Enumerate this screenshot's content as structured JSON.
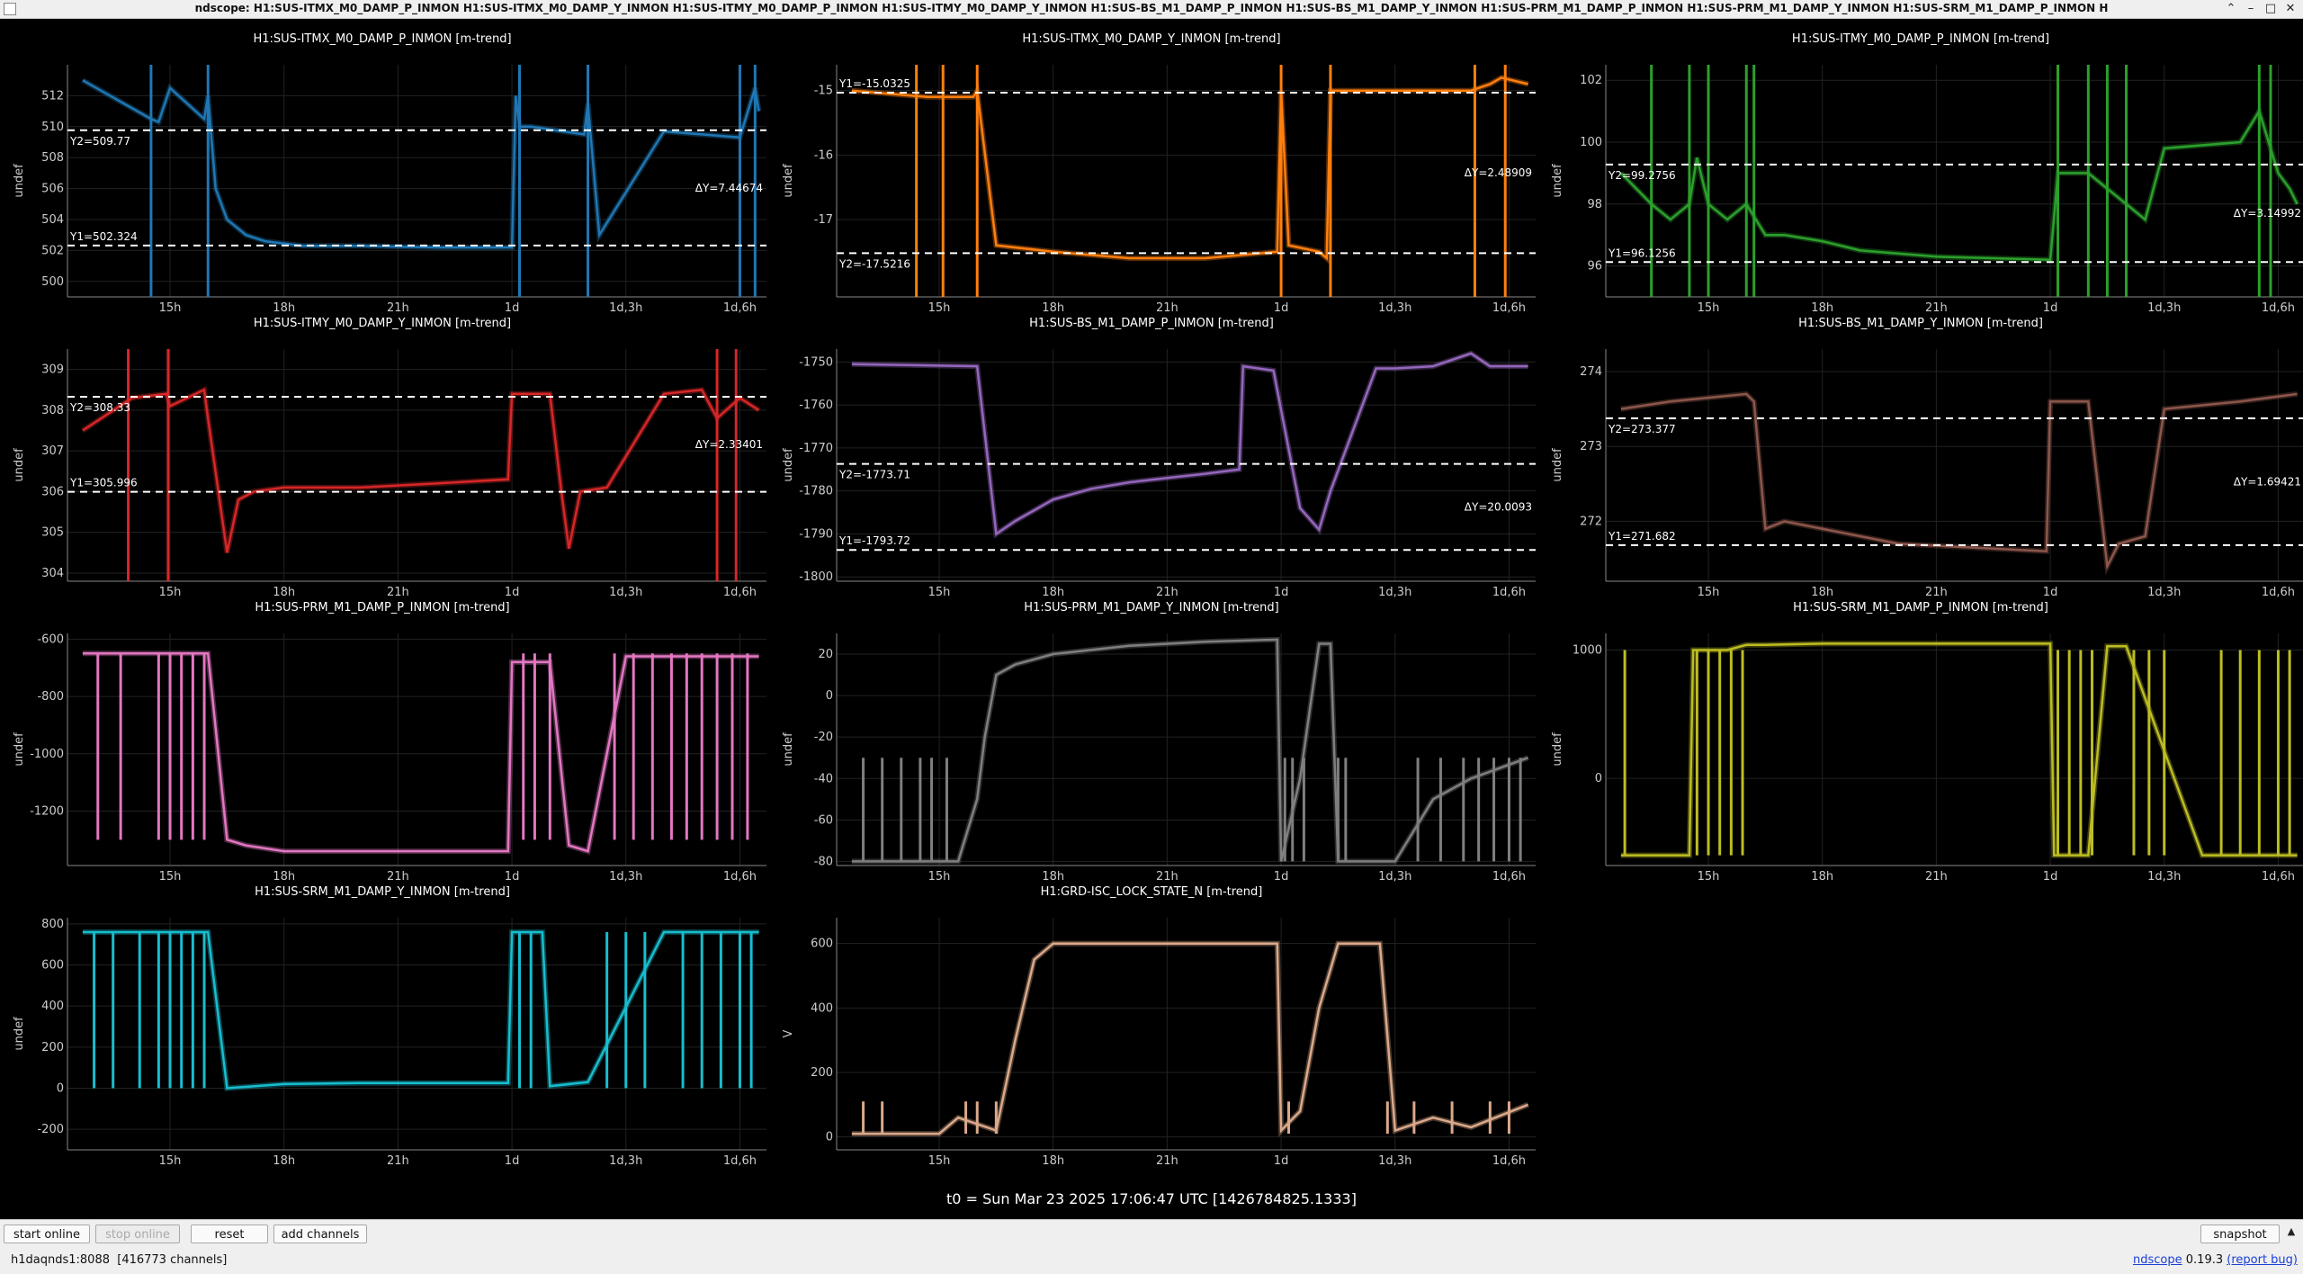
{
  "window": {
    "title": "ndscope: H1:SUS-ITMX_M0_DAMP_P_INMON H1:SUS-ITMX_M0_DAMP_Y_INMON H1:SUS-ITMY_M0_DAMP_P_INMON H1:SUS-ITMY_M0_DAMP_Y_INMON H1:SUS-BS_M1_DAMP_P_INMON H1:SUS-BS_M1_DAMP_Y_INMON H1:SUS-PRM_M1_DAMP_P_INMON H1:SUS-PRM_M1_DAMP_Y_INMON H1:SUS-SRM_M1_DAMP_P_INMON H",
    "minimize": "–",
    "maximize": "□",
    "close": "✕",
    "up": "⌃"
  },
  "t0_label": "t0 = Sun Mar 23 2025 17:06:47 UTC [1426784825.1333]",
  "x_ticks": [
    "15h",
    "18h",
    "21h",
    "1d",
    "1d,3h",
    "1d,6h"
  ],
  "buttons": {
    "start_online": "start online",
    "stop_online": "stop online",
    "reset": "reset",
    "add_channels": "add channels",
    "snapshot": "snapshot",
    "expand": "▲"
  },
  "status": {
    "server": "h1daqnds1:8088  [416773 channels]",
    "app": "ndscope",
    "version": "0.19.3",
    "report": "(report bug)"
  },
  "chart_data": [
    {
      "type": "line",
      "title": "H1:SUS-ITMX_M0_DAMP_P_INMON [m-trend]",
      "ylabel": "undef",
      "color": "#1f77b4",
      "ylim": [
        499,
        514
      ],
      "yticks": [
        "500",
        "502",
        "504",
        "506",
        "508",
        "510",
        "512"
      ],
      "yticks_values": [
        500,
        502,
        504,
        506,
        508,
        510,
        512
      ],
      "x": [
        -2.3,
        -0.5,
        -0.4,
        -0.3,
        0.0,
        0.9,
        1.0,
        1.2,
        1.5,
        2.0,
        2.5,
        3.5,
        5.0,
        7.0,
        9.0,
        9.1,
        9.2,
        9.5,
        10.9,
        11.0,
        11.3,
        13.0,
        14.0,
        15.0,
        15.4,
        15.5
      ],
      "values": [
        513,
        510.5,
        510.4,
        510.3,
        512.5,
        510.5,
        512,
        506,
        504,
        503,
        502.6,
        502.3,
        502.3,
        502.2,
        502.2,
        512,
        510,
        510,
        509.5,
        511.5,
        503,
        509.7,
        509.5,
        509.3,
        512.5,
        511
      ],
      "spikes_x": [
        -0.5,
        1.0,
        9.2,
        11.0,
        15.0,
        15.4
      ],
      "cursors": {
        "Y1": "Y1=502.324",
        "Y2": "Y2=509.77",
        "dY": "ΔY=7.44674",
        "y1": 502.324,
        "y2": 509.77
      }
    },
    {
      "type": "line",
      "title": "H1:SUS-ITMX_M0_DAMP_Y_INMON [m-trend]",
      "ylabel": "undef",
      "color": "#ff7f0e",
      "ylim": [
        -18.2,
        -14.6
      ],
      "yticks": [
        "-15",
        "-16",
        "-17"
      ],
      "yticks_values": [
        -15,
        -16,
        -17
      ],
      "x": [
        -2.3,
        -0.3,
        -0.1,
        0.9,
        1.0,
        1.5,
        3.0,
        5.0,
        7.0,
        8.9,
        9.0,
        9.2,
        10.0,
        10.2,
        10.3,
        12.0,
        13.0,
        14.0,
        14.5,
        14.8,
        15.5
      ],
      "values": [
        -15.0,
        -15.1,
        -15.1,
        -15.1,
        -15.0,
        -17.4,
        -17.5,
        -17.6,
        -17.6,
        -17.5,
        -15.0,
        -17.4,
        -17.5,
        -17.6,
        -15.0,
        -15.0,
        -15.0,
        -15.0,
        -14.9,
        -14.8,
        -14.9
      ],
      "spikes_x": [
        -0.6,
        0.1,
        1.0,
        9.0,
        10.3,
        14.1,
        14.9
      ],
      "cursors": {
        "Y1": "Y1=-15.0325",
        "Y2": "Y2=-17.5216",
        "dY": "ΔY=2.48909",
        "y1": -15.0325,
        "y2": -17.5216
      }
    },
    {
      "type": "line",
      "title": "H1:SUS-ITMY_M0_DAMP_P_INMON [m-trend]",
      "ylabel": "undef",
      "color": "#2ca02c",
      "ylim": [
        95,
        102.5
      ],
      "yticks": [
        "96",
        "98",
        "100",
        "102"
      ],
      "yticks_values": [
        96,
        98,
        100,
        102
      ],
      "x": [
        -2.3,
        -1.5,
        -1.0,
        -0.5,
        -0.3,
        0.0,
        0.5,
        1.0,
        1.5,
        2.0,
        3.0,
        4.0,
        6.0,
        9.0,
        9.2,
        10.0,
        10.5,
        11.0,
        11.5,
        12.0,
        14.0,
        14.5,
        15.0,
        15.3,
        15.5
      ],
      "values": [
        99,
        98,
        97.5,
        98,
        99.5,
        98,
        97.5,
        98,
        97,
        97,
        96.8,
        96.5,
        96.3,
        96.2,
        99,
        99,
        98.5,
        98,
        97.5,
        99.8,
        100,
        101,
        99,
        98.5,
        98
      ],
      "spikes_x": [
        -1.5,
        -0.5,
        0.0,
        1.0,
        1.2,
        9.2,
        10.0,
        10.5,
        11.0,
        14.5,
        14.8
      ],
      "cursors": {
        "Y1": "Y1=96.1256",
        "Y2": "Y2=99.2756",
        "dY": "ΔY=3.14992",
        "y1": 96.1256,
        "y2": 99.2756
      }
    },
    {
      "type": "line",
      "title": "H1:SUS-ITMY_M0_DAMP_Y_INMON [m-trend]",
      "ylabel": "undef",
      "color": "#d62728",
      "ylim": [
        303.8,
        309.5
      ],
      "yticks": [
        "304",
        "305",
        "306",
        "307",
        "308",
        "309"
      ],
      "yticks_values": [
        304,
        305,
        306,
        307,
        308,
        309
      ],
      "x": [
        -2.3,
        -1.0,
        -0.1,
        0.0,
        0.9,
        1.0,
        1.5,
        1.8,
        2.2,
        3.0,
        5.0,
        7.0,
        8.9,
        9.0,
        10.0,
        10.3,
        10.5,
        10.8,
        11.5,
        13.0,
        14.0,
        14.4,
        15.0,
        15.5
      ],
      "values": [
        307.5,
        308.3,
        308.4,
        308.1,
        308.5,
        307.8,
        304.5,
        305.8,
        306.0,
        306.1,
        306.1,
        306.2,
        306.3,
        308.4,
        308.4,
        306.0,
        304.6,
        306.0,
        306.1,
        308.4,
        308.5,
        307.8,
        308.3,
        308.0
      ],
      "spikes_x": [
        -1.1,
        -0.05,
        14.4,
        14.9
      ],
      "cursors": {
        "Y1": "Y1=305.996",
        "Y2": "Y2=308.33",
        "dY": "ΔY=2.33401",
        "y1": 305.996,
        "y2": 308.33
      }
    },
    {
      "type": "line",
      "title": "H1:SUS-BS_M1_DAMP_P_INMON [m-trend]",
      "ylabel": "undef",
      "color": "#9467bd",
      "ylim": [
        -1801,
        -1747
      ],
      "yticks": [
        "-1750",
        "-1760",
        "-1770",
        "-1780",
        "-1790",
        "-1800"
      ],
      "yticks_values": [
        -1750,
        -1760,
        -1770,
        -1780,
        -1790,
        -1800
      ],
      "x": [
        -2.3,
        1.0,
        1.5,
        2.0,
        3.0,
        4.0,
        5.0,
        6.0,
        7.0,
        7.9,
        8.0,
        8.8,
        9.5,
        10.0,
        10.3,
        11.5,
        12.0,
        13.0,
        14.0,
        14.5,
        15.5
      ],
      "values": [
        -1750.5,
        -1751,
        -1790,
        -1787,
        -1782,
        -1779.5,
        -1778,
        -1777,
        -1776,
        -1775,
        -1751,
        -1752,
        -1784,
        -1789,
        -1780,
        -1751.5,
        -1751.5,
        -1751,
        -1748,
        -1751,
        -1751
      ],
      "spikes_x": [],
      "cursors": {
        "Y1": "Y1=-1793.72",
        "Y2": "Y2=-1773.71",
        "dY": "ΔY=20.0093",
        "y1": -1793.72,
        "y2": -1773.71
      }
    },
    {
      "type": "line",
      "title": "H1:SUS-BS_M1_DAMP_Y_INMON [m-trend]",
      "ylabel": "undef",
      "color": "#8c564b",
      "ylim": [
        271.2,
        274.3
      ],
      "yticks": [
        "272",
        "273",
        "274"
      ],
      "yticks_values": [
        272,
        273,
        274
      ],
      "x": [
        -2.3,
        -1.0,
        1.0,
        1.2,
        1.5,
        2.0,
        5.0,
        8.9,
        9.0,
        10.0,
        10.5,
        10.8,
        11.5,
        12.0,
        14.0,
        15.5
      ],
      "values": [
        273.5,
        273.6,
        273.7,
        273.6,
        271.9,
        272.0,
        271.7,
        271.6,
        273.6,
        273.6,
        271.4,
        271.7,
        271.8,
        273.5,
        273.6,
        273.7
      ],
      "spikes_x": [],
      "cursors": {
        "Y1": "Y1=271.682",
        "Y2": "Y2=273.377",
        "dY": "ΔY=1.69421",
        "y1": 271.682,
        "y2": 273.377
      }
    },
    {
      "type": "line",
      "title": "H1:SUS-PRM_M1_DAMP_P_INMON [m-trend]",
      "ylabel": "undef",
      "color": "#e377c2",
      "ylim": [
        -1390,
        -580
      ],
      "yticks": [
        "-600",
        "-800",
        "-1000",
        "-1200"
      ],
      "yticks_values": [
        -600,
        -800,
        -1000,
        -1200
      ],
      "x": [
        -2.3,
        -0.5,
        1.0,
        1.5,
        2.0,
        3.0,
        5.0,
        7.0,
        8.9,
        9.0,
        10.0,
        10.5,
        11.0,
        12.0,
        13.0,
        14.0,
        15.5
      ],
      "values": [
        -650,
        -650,
        -650,
        -1300,
        -1320,
        -1340,
        -1340,
        -1340,
        -1340,
        -680,
        -680,
        -1320,
        -1340,
        -660,
        -660,
        -660,
        -660
      ],
      "spikes_x": [
        -1.9,
        -1.3,
        -0.3,
        0.0,
        0.3,
        0.6,
        0.9,
        9.3,
        9.6,
        10.0,
        11.7,
        12.2,
        12.7,
        13.2,
        13.6,
        14.0,
        14.4,
        14.8,
        15.2
      ],
      "spike_low": -1300,
      "spike_high": -650,
      "cursors": null
    },
    {
      "type": "line",
      "title": "H1:SUS-PRM_M1_DAMP_Y_INMON [m-trend]",
      "ylabel": "undef",
      "color": "#7f7f7f",
      "ylim": [
        -82,
        30
      ],
      "yticks": [
        "20",
        "0",
        "-20",
        "-40",
        "-60",
        "-80"
      ],
      "yticks_values": [
        20,
        0,
        -20,
        -40,
        -60,
        -80
      ],
      "x": [
        -2.3,
        0.5,
        1.0,
        1.2,
        1.5,
        2.0,
        3.0,
        5.0,
        7.0,
        8.9,
        9.0,
        9.5,
        10.0,
        10.3,
        10.5,
        11.0,
        11.5,
        12.0,
        13.0,
        14.0,
        15.5
      ],
      "values": [
        -80,
        -80,
        -50,
        -20,
        10,
        15,
        20,
        24,
        26,
        27,
        -80,
        -40,
        25,
        25,
        -80,
        -80,
        -80,
        -80,
        -50,
        -40,
        -30
      ],
      "spikes_x": [
        -2.0,
        -1.5,
        -1.0,
        -0.5,
        -0.2,
        0.2,
        9.1,
        9.3,
        9.6,
        10.5,
        10.7,
        12.6,
        13.2,
        13.8,
        14.2,
        14.6,
        15.0,
        15.3
      ],
      "spike_low": -80,
      "spike_high": -30,
      "cursors": null
    },
    {
      "type": "line",
      "title": "H1:SUS-SRM_M1_DAMP_P_INMON [m-trend]",
      "ylabel": "undef",
      "color": "#bcbd22",
      "ylim": [
        -680,
        1130
      ],
      "yticks": [
        "1000",
        "0"
      ],
      "yticks_values": [
        1000,
        0
      ],
      "x": [
        -2.3,
        -0.5,
        -0.4,
        0.5,
        1.0,
        1.5,
        3.0,
        5.0,
        7.0,
        9.0,
        9.1,
        10.0,
        10.5,
        11.0,
        13.0,
        15.5
      ],
      "values": [
        -600,
        -600,
        1000,
        1000,
        1040,
        1040,
        1050,
        1050,
        1050,
        1050,
        -600,
        -600,
        1030,
        1030,
        -600,
        -600
      ],
      "spikes_x": [
        -2.2,
        -0.3,
        0.0,
        0.3,
        0.6,
        0.9,
        9.2,
        9.5,
        9.8,
        10.1,
        11.2,
        11.6,
        12.0,
        13.5,
        14.0,
        14.5,
        15.0,
        15.3
      ],
      "spike_low": -600,
      "spike_high": 1000,
      "cursors": null
    },
    {
      "type": "line",
      "title": "H1:SUS-SRM_M1_DAMP_Y_INMON [m-trend]",
      "ylabel": "undef",
      "color": "#17becf",
      "ylim": [
        -300,
        830
      ],
      "yticks": [
        "800",
        "600",
        "400",
        "200",
        "0",
        "-200"
      ],
      "yticks_values": [
        800,
        600,
        400,
        200,
        0,
        -200
      ],
      "x": [
        -2.3,
        -0.5,
        1.0,
        1.5,
        3.0,
        5.0,
        7.0,
        8.9,
        9.0,
        9.8,
        10.0,
        11.0,
        13.0,
        15.5
      ],
      "values": [
        760,
        760,
        760,
        0,
        20,
        25,
        25,
        25,
        760,
        760,
        10,
        30,
        760,
        760
      ],
      "spikes_x": [
        -2.0,
        -1.5,
        -0.8,
        -0.3,
        0.0,
        0.3,
        0.6,
        0.9,
        9.2,
        9.5,
        11.5,
        12.0,
        12.5,
        13.5,
        14.0,
        14.5,
        15.0,
        15.3
      ],
      "spike_low": 0,
      "spike_high": 760,
      "cursors": null
    },
    {
      "type": "line",
      "title": "H1:GRD-ISC_LOCK_STATE_N [m-trend]",
      "ylabel": "V",
      "color": "#dba98a",
      "ylim": [
        -40,
        680
      ],
      "yticks": [
        "600",
        "400",
        "200",
        "0"
      ],
      "yticks_values": [
        600,
        400,
        200,
        0
      ],
      "x": [
        -2.3,
        0.0,
        0.5,
        1.5,
        2.0,
        2.5,
        3.0,
        3.5,
        5.0,
        7.0,
        8.9,
        9.0,
        9.5,
        10.0,
        10.5,
        11.0,
        11.6,
        12.0,
        13.0,
        14.0,
        15.5
      ],
      "values": [
        10,
        10,
        60,
        20,
        300,
        550,
        600,
        600,
        600,
        600,
        600,
        20,
        80,
        400,
        600,
        600,
        600,
        20,
        60,
        30,
        100
      ],
      "spikes_x": [
        -2.0,
        -1.5,
        0.7,
        1.0,
        1.5,
        9.2,
        11.8,
        12.5,
        13.5,
        14.5,
        15.0
      ],
      "spike_low": 10,
      "spike_high": 110,
      "cursors": null
    }
  ]
}
